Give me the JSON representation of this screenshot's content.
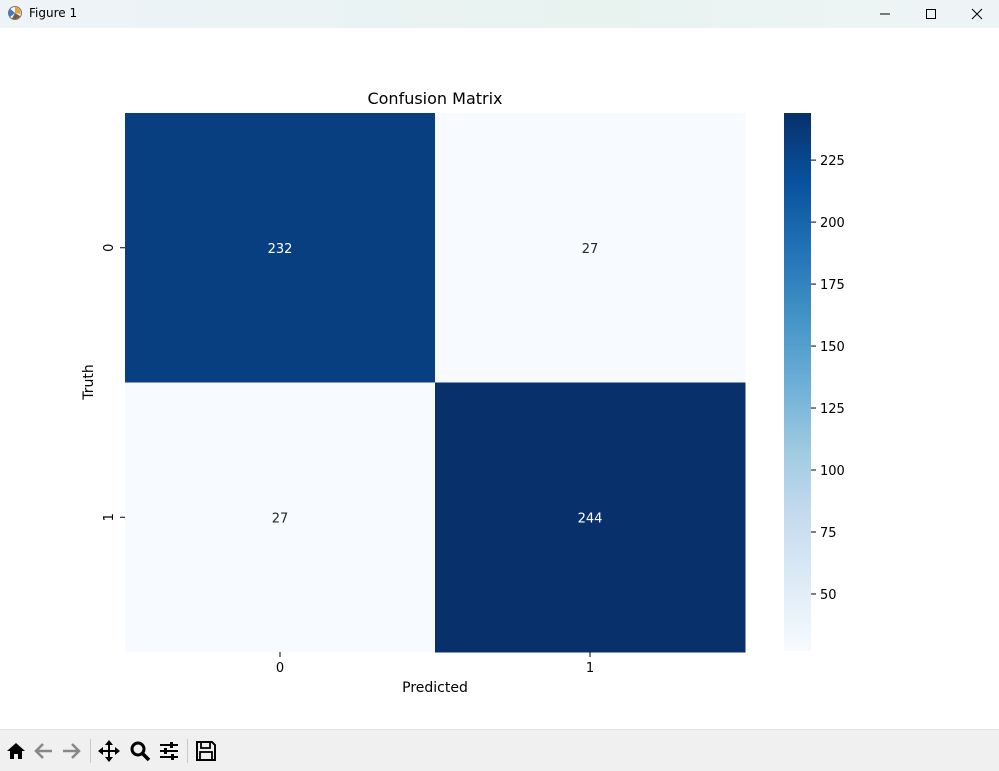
{
  "window": {
    "title": "Figure 1"
  },
  "chart_data": {
    "type": "heatmap",
    "title": "Confusion Matrix",
    "xlabel": "Predicted",
    "ylabel": "Truth",
    "x_categories": [
      "0",
      "1"
    ],
    "y_categories": [
      "0",
      "1"
    ],
    "values": [
      [
        232,
        27
      ],
      [
        27,
        244
      ]
    ],
    "colormap": "Blues",
    "vmin": 27,
    "vmax": 244,
    "colorbar_ticks": [
      50,
      75,
      100,
      125,
      150,
      175,
      200,
      225
    ],
    "annotations": true
  },
  "toolbar": {
    "buttons": [
      "home-icon",
      "back-icon",
      "forward-icon",
      "pan-icon",
      "zoom-icon",
      "configure-icon",
      "save-icon"
    ]
  }
}
